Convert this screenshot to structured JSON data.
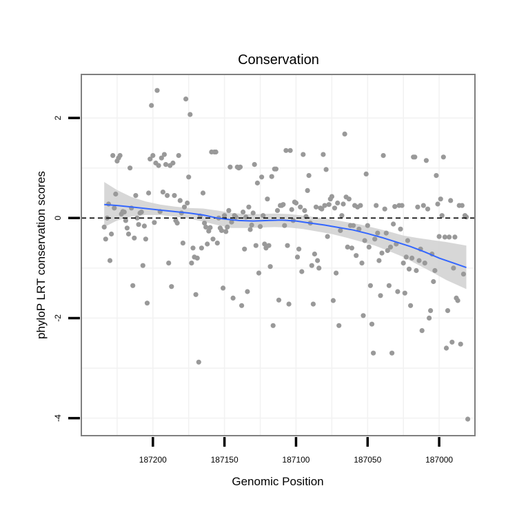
{
  "chart_data": {
    "type": "scatter",
    "title": "Conservation",
    "xlabel": "Genomic Position",
    "ylabel": "phyloP LRT conservation scores",
    "x_reversed": true,
    "xlim": [
      187250,
      186975
    ],
    "ylim": [
      -4.35,
      2.87
    ],
    "x_ticks": [
      187200,
      187150,
      187100,
      187050,
      187000
    ],
    "x_tick_labels": [
      "187200",
      "187150",
      "187100",
      "187050",
      "187000"
    ],
    "y_ticks": [
      2,
      0,
      -2,
      -4
    ],
    "y_tick_labels": [
      "2",
      "0",
      "-2",
      "-4"
    ],
    "grid": true,
    "reference_line": {
      "y": 0,
      "style": "dashed",
      "color": "#000000"
    },
    "colors": {
      "points": "#999999",
      "smooth_line": "#3366FF",
      "confidence_band": "#d0d0d0",
      "panel_border": "#7f7f7f",
      "grid": "#f2f2f2"
    },
    "points": [
      [
        187234,
        -0.18
      ],
      [
        187233,
        -0.42
      ],
      [
        187232,
        0.0
      ],
      [
        187231,
        0.28
      ],
      [
        187230,
        -0.85
      ],
      [
        187229,
        -0.32
      ],
      [
        187228,
        1.25
      ],
      [
        187227,
        0.2
      ],
      [
        187226,
        0.48
      ],
      [
        187225,
        1.14
      ],
      [
        187224,
        1.2
      ],
      [
        187223,
        1.25
      ],
      [
        187222,
        0.08
      ],
      [
        187221,
        0.13
      ],
      [
        187220,
        0.12
      ],
      [
        187219,
        -0.05
      ],
      [
        187218,
        -0.2
      ],
      [
        187217,
        -0.32
      ],
      [
        187216,
        1.0
      ],
      [
        187215,
        0.2
      ],
      [
        187214,
        -1.35
      ],
      [
        187213,
        -0.4
      ],
      [
        187212,
        0.45
      ],
      [
        187211,
        0.0
      ],
      [
        187210,
        -0.13
      ],
      [
        187209,
        0.1
      ],
      [
        187208,
        0.12
      ],
      [
        187207,
        -0.95
      ],
      [
        187206,
        -0.16
      ],
      [
        187205,
        -0.42
      ],
      [
        187204,
        -1.7
      ],
      [
        187203,
        0.5
      ],
      [
        187202,
        1.18
      ],
      [
        187201,
        2.25
      ],
      [
        187200,
        1.25
      ],
      [
        187199,
        -0.09
      ],
      [
        187198,
        1.1
      ],
      [
        187197,
        2.55
      ],
      [
        187196,
        1.05
      ],
      [
        187195,
        0.13
      ],
      [
        187194,
        1.2
      ],
      [
        187193,
        0.52
      ],
      [
        187192,
        1.27
      ],
      [
        187191,
        1.07
      ],
      [
        187190,
        0.45
      ],
      [
        187189,
        -0.9
      ],
      [
        187188,
        1.05
      ],
      [
        187187,
        -1.37
      ],
      [
        187186,
        1.1
      ],
      [
        187185,
        0.45
      ],
      [
        187184,
        -0.05
      ],
      [
        187183,
        -0.1
      ],
      [
        187182,
        1.25
      ],
      [
        187181,
        0.35
      ],
      [
        187180,
        0.1
      ],
      [
        187179,
        -0.5
      ],
      [
        187178,
        0.22
      ],
      [
        187177,
        2.38
      ],
      [
        187176,
        0.3
      ],
      [
        187175,
        0.82
      ],
      [
        187174,
        2.07
      ],
      [
        187173,
        -0.9
      ],
      [
        187172,
        -0.6
      ],
      [
        187171,
        -0.78
      ],
      [
        187170,
        -1.53
      ],
      [
        187169,
        -0.8
      ],
      [
        187168,
        -2.88
      ],
      [
        187167,
        0.04
      ],
      [
        187166,
        -0.6
      ],
      [
        187165,
        0.5
      ],
      [
        187164,
        -0.1
      ],
      [
        187163,
        -0.18
      ],
      [
        187162,
        -0.52
      ],
      [
        187161,
        -0.26
      ],
      [
        187160,
        -0.19
      ],
      [
        187159,
        1.32
      ],
      [
        187158,
        -0.42
      ],
      [
        187157,
        1.32
      ],
      [
        187156,
        1.32
      ],
      [
        187155,
        -0.5
      ],
      [
        187154,
        0.0
      ],
      [
        187153,
        -0.2
      ],
      [
        187152,
        -0.25
      ],
      [
        187151,
        -1.4
      ],
      [
        187150,
        0.05
      ],
      [
        187149,
        -0.27
      ],
      [
        187148,
        -0.18
      ],
      [
        187147,
        0.15
      ],
      [
        187146,
        1.02
      ],
      [
        187145,
        -0.08
      ],
      [
        187144,
        -1.6
      ],
      [
        187143,
        0.05
      ],
      [
        187142,
        0.02
      ],
      [
        187141,
        1.02
      ],
      [
        187140,
        1.0
      ],
      [
        187139,
        1.02
      ],
      [
        187138,
        -1.75
      ],
      [
        187137,
        0.12
      ],
      [
        187136,
        -0.62
      ],
      [
        187135,
        0.02
      ],
      [
        187134,
        -1.47
      ],
      [
        187133,
        0.22
      ],
      [
        187132,
        -0.23
      ],
      [
        187131,
        -0.14
      ],
      [
        187130,
        0.1
      ],
      [
        187129,
        1.07
      ],
      [
        187128,
        -0.55
      ],
      [
        187127,
        0.7
      ],
      [
        187126,
        -1.1
      ],
      [
        187125,
        -0.17
      ],
      [
        187124,
        0.82
      ],
      [
        187123,
        0.05
      ],
      [
        187122,
        -0.52
      ],
      [
        187121,
        -0.6
      ],
      [
        187120,
        0.38
      ],
      [
        187119,
        -0.55
      ],
      [
        187118,
        -0.97
      ],
      [
        187117,
        0.83
      ],
      [
        187116,
        -2.15
      ],
      [
        187115,
        0.98
      ],
      [
        187114,
        0.98
      ],
      [
        187113,
        0.15
      ],
      [
        187112,
        -1.64
      ],
      [
        187111,
        0.25
      ],
      [
        187110,
        0.25
      ],
      [
        187109,
        0.27
      ],
      [
        187108,
        -0.15
      ],
      [
        187107,
        1.35
      ],
      [
        187106,
        -0.55
      ],
      [
        187105,
        -1.72
      ],
      [
        187104,
        1.35
      ],
      [
        187103,
        0.17
      ],
      [
        187102,
        -0.05
      ],
      [
        187101,
        0.32
      ],
      [
        187100,
        0.3
      ],
      [
        187099,
        -0.78
      ],
      [
        187098,
        -0.62
      ],
      [
        187097,
        0.22
      ],
      [
        187096,
        -1.07
      ],
      [
        187095,
        1.27
      ],
      [
        187094,
        0.15
      ],
      [
        187093,
        0.03
      ],
      [
        187092,
        0.55
      ],
      [
        187091,
        0.85
      ],
      [
        187090,
        -0.1
      ],
      [
        187089,
        -0.95
      ],
      [
        187088,
        -1.72
      ],
      [
        187087,
        -0.72
      ],
      [
        187086,
        0.22
      ],
      [
        187085,
        -0.85
      ],
      [
        187084,
        -1.0
      ],
      [
        187083,
        0.2
      ],
      [
        187082,
        0.18
      ],
      [
        187081,
        1.27
      ],
      [
        187080,
        0.25
      ],
      [
        187079,
        0.97
      ],
      [
        187078,
        -0.37
      ],
      [
        187077,
        0.27
      ],
      [
        187076,
        0.38
      ],
      [
        187075,
        0.43
      ],
      [
        187074,
        -1.65
      ],
      [
        187073,
        0.2
      ],
      [
        187072,
        -1.1
      ],
      [
        187071,
        0.3
      ],
      [
        187070,
        -2.15
      ],
      [
        187069,
        -0.25
      ],
      [
        187068,
        0.05
      ],
      [
        187067,
        0.28
      ],
      [
        187066,
        1.68
      ],
      [
        187065,
        0.42
      ],
      [
        187064,
        -0.58
      ],
      [
        187063,
        0.38
      ],
      [
        187062,
        -0.15
      ],
      [
        187061,
        -0.6
      ],
      [
        187060,
        -0.15
      ],
      [
        187059,
        0.25
      ],
      [
        187058,
        -0.75
      ],
      [
        187057,
        0.22
      ],
      [
        187056,
        -0.22
      ],
      [
        187055,
        0.25
      ],
      [
        187054,
        -0.9
      ],
      [
        187053,
        -1.95
      ],
      [
        187052,
        -0.45
      ],
      [
        187051,
        0.88
      ],
      [
        187050,
        -0.15
      ],
      [
        187049,
        -0.58
      ],
      [
        187048,
        -1.35
      ],
      [
        187047,
        -2.12
      ],
      [
        187046,
        -2.7
      ],
      [
        187045,
        -0.42
      ],
      [
        187044,
        0.25
      ],
      [
        187043,
        -0.3
      ],
      [
        187042,
        -0.85
      ],
      [
        187041,
        -1.55
      ],
      [
        187040,
        -0.7
      ],
      [
        187039,
        1.25
      ],
      [
        187038,
        0.18
      ],
      [
        187037,
        -0.3
      ],
      [
        187036,
        -0.65
      ],
      [
        187035,
        -1.35
      ],
      [
        187034,
        -0.58
      ],
      [
        187033,
        -2.7
      ],
      [
        187032,
        -0.12
      ],
      [
        187031,
        0.23
      ],
      [
        187030,
        -0.52
      ],
      [
        187029,
        -1.47
      ],
      [
        187028,
        0.25
      ],
      [
        187027,
        -0.22
      ],
      [
        187026,
        0.25
      ],
      [
        187025,
        -0.9
      ],
      [
        187024,
        -1.5
      ],
      [
        187023,
        -0.78
      ],
      [
        187022,
        -0.45
      ],
      [
        187021,
        -1.02
      ],
      [
        187020,
        -1.75
      ],
      [
        187019,
        -0.8
      ],
      [
        187018,
        1.22
      ],
      [
        187017,
        1.22
      ],
      [
        187016,
        -1.05
      ],
      [
        187015,
        0.22
      ],
      [
        187014,
        -0.85
      ],
      [
        187013,
        -0.62
      ],
      [
        187012,
        -2.25
      ],
      [
        187011,
        0.25
      ],
      [
        187010,
        -0.9
      ],
      [
        187009,
        1.15
      ],
      [
        187008,
        0.18
      ],
      [
        187007,
        -2.0
      ],
      [
        187006,
        -1.85
      ],
      [
        187005,
        -0.72
      ],
      [
        187004,
        -1.27
      ],
      [
        187003,
        -1.05
      ],
      [
        187002,
        0.85
      ],
      [
        187001,
        0.28
      ],
      [
        187000,
        -0.37
      ],
      [
        186999,
        0.38
      ],
      [
        186998,
        0.05
      ],
      [
        186997,
        1.22
      ],
      [
        186996,
        -0.38
      ],
      [
        186995,
        -2.6
      ],
      [
        186994,
        -1.85
      ],
      [
        186993,
        -0.38
      ],
      [
        186992,
        0.35
      ],
      [
        186991,
        -2.48
      ],
      [
        186990,
        -1.0
      ],
      [
        186989,
        -0.38
      ],
      [
        186988,
        -1.6
      ],
      [
        186987,
        -1.65
      ],
      [
        186986,
        0.25
      ],
      [
        186985,
        -2.52
      ],
      [
        186984,
        0.25
      ],
      [
        186983,
        -1.12
      ],
      [
        186982,
        0.05
      ],
      [
        186981,
        0.02
      ],
      [
        186980,
        -4.02
      ]
    ],
    "smooth_fit": [
      [
        187234,
        0.27
      ],
      [
        187225,
        0.25
      ],
      [
        187215,
        0.22
      ],
      [
        187205,
        0.19
      ],
      [
        187195,
        0.16
      ],
      [
        187185,
        0.13
      ],
      [
        187175,
        0.1
      ],
      [
        187165,
        0.06
      ],
      [
        187155,
        0.0
      ],
      [
        187150,
        -0.02
      ],
      [
        187140,
        -0.05
      ],
      [
        187130,
        -0.06
      ],
      [
        187120,
        -0.05
      ],
      [
        187110,
        -0.04
      ],
      [
        187100,
        -0.06
      ],
      [
        187090,
        -0.1
      ],
      [
        187080,
        -0.14
      ],
      [
        187070,
        -0.19
      ],
      [
        187060,
        -0.24
      ],
      [
        187050,
        -0.31
      ],
      [
        187040,
        -0.39
      ],
      [
        187030,
        -0.48
      ],
      [
        187020,
        -0.57
      ],
      [
        187010,
        -0.68
      ],
      [
        187000,
        -0.8
      ],
      [
        186990,
        -0.9
      ],
      [
        186981,
        -0.99
      ]
    ],
    "confidence_band": [
      [
        187234,
        -0.18,
        0.72
      ],
      [
        187225,
        -0.05,
        0.56
      ],
      [
        187215,
        0.03,
        0.42
      ],
      [
        187205,
        0.06,
        0.33
      ],
      [
        187195,
        0.06,
        0.27
      ],
      [
        187185,
        0.03,
        0.23
      ],
      [
        187175,
        -0.01,
        0.2
      ],
      [
        187165,
        -0.07,
        0.19
      ],
      [
        187155,
        -0.14,
        0.15
      ],
      [
        187145,
        -0.2,
        0.1
      ],
      [
        187135,
        -0.2,
        0.08
      ],
      [
        187125,
        -0.19,
        0.08
      ],
      [
        187115,
        -0.18,
        0.09
      ],
      [
        187105,
        -0.19,
        0.08
      ],
      [
        187095,
        -0.22,
        0.05
      ],
      [
        187085,
        -0.27,
        0.01
      ],
      [
        187075,
        -0.32,
        -0.03
      ],
      [
        187065,
        -0.39,
        -0.08
      ],
      [
        187055,
        -0.47,
        -0.13
      ],
      [
        187045,
        -0.55,
        -0.2
      ],
      [
        187035,
        -0.66,
        -0.27
      ],
      [
        187025,
        -0.78,
        -0.35
      ],
      [
        187015,
        -0.93,
        -0.4
      ],
      [
        187005,
        -1.08,
        -0.44
      ],
      [
        186995,
        -1.24,
        -0.48
      ],
      [
        186981,
        -1.42,
        -0.55
      ]
    ]
  }
}
